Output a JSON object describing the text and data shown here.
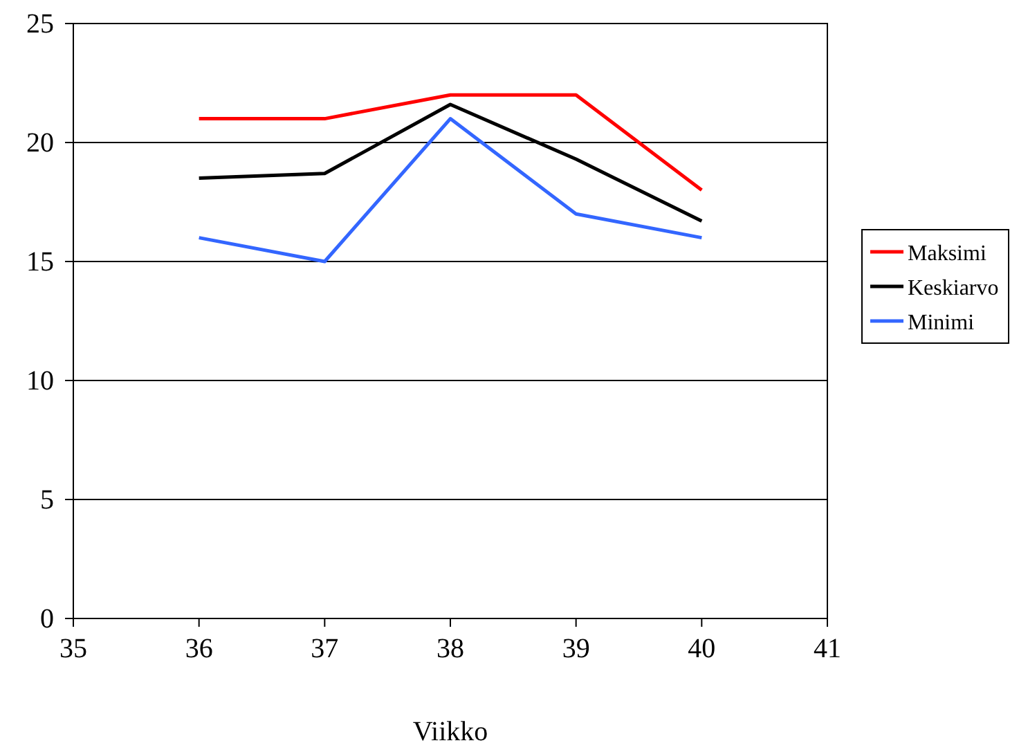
{
  "chart_data": {
    "type": "line",
    "xlabel": "Viikko",
    "x": [
      36,
      37,
      38,
      39,
      40
    ],
    "series": [
      {
        "name": "Maksimi",
        "color": "#ff0000",
        "values": [
          21,
          21,
          22,
          22,
          18
        ]
      },
      {
        "name": "Keskiarvo",
        "color": "#000000",
        "values": [
          18.5,
          18.7,
          21.6,
          19.3,
          16.7
        ]
      },
      {
        "name": "Minimi",
        "color": "#3366ff",
        "values": [
          16,
          15,
          21,
          17,
          16
        ]
      }
    ],
    "xlim": [
      35,
      41
    ],
    "xticks": [
      35,
      36,
      37,
      38,
      39,
      40,
      41
    ],
    "ylim": [
      0,
      25
    ],
    "yticks": [
      0,
      5,
      10,
      15,
      20,
      25
    ],
    "grid": "y",
    "legend": "right",
    "marker": "none",
    "line_style": "solid"
  }
}
